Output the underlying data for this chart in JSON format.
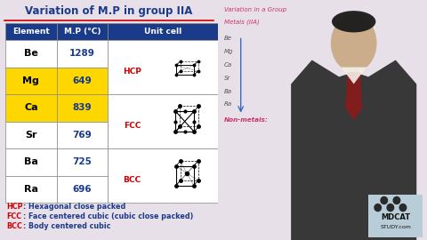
{
  "title": "Variation of M.P in group IIA",
  "title_color": "#1a3a8a",
  "title_underline_color": "#cc0000",
  "header": [
    "Element",
    "M.P (°C)",
    "Unit cell"
  ],
  "header_bg": "#1a3a8a",
  "header_color": "white",
  "rows": [
    {
      "element": "Be",
      "mp": "1289",
      "bg": "white"
    },
    {
      "element": "Mg",
      "mp": "649",
      "bg": "#ffd700"
    },
    {
      "element": "Ca",
      "mp": "839",
      "bg": "#ffd700"
    },
    {
      "element": "Sr",
      "mp": "769",
      "bg": "white"
    },
    {
      "element": "Ba",
      "mp": "725",
      "bg": "white"
    },
    {
      "element": "Ra",
      "mp": "696",
      "bg": "white"
    }
  ],
  "unit_cell_spans": [
    {
      "label": "HCP",
      "r_start": 0,
      "r_end": 1
    },
    {
      "label": "FCC",
      "r_start": 2,
      "r_end": 3
    },
    {
      "label": "BCC",
      "r_start": 4,
      "r_end": 5
    }
  ],
  "footnotes": [
    {
      "abbr": "HCP",
      "text": ": Hexagonal close packed"
    },
    {
      "abbr": "FCC",
      "text": ": Face centered cubic (cubic close packed)"
    },
    {
      "abbr": "BCC",
      "text": ": Body centered cubic"
    }
  ],
  "footnote_abbr_color": "#cc0000",
  "footnote_text_color": "#1a3a8a",
  "value_color": "#1a3a8a",
  "element_color": "#000000",
  "unit_label_color": "#cc0000",
  "panel_bg": "#e8e0e8",
  "table_bg": "#e8e0e8",
  "table_border_color": "#888888",
  "right_bg": "#d0cdd0",
  "whiteboard_color": "#f5f5f5",
  "wb_text_color": "#cc3366",
  "wb_element_color": "#555555"
}
